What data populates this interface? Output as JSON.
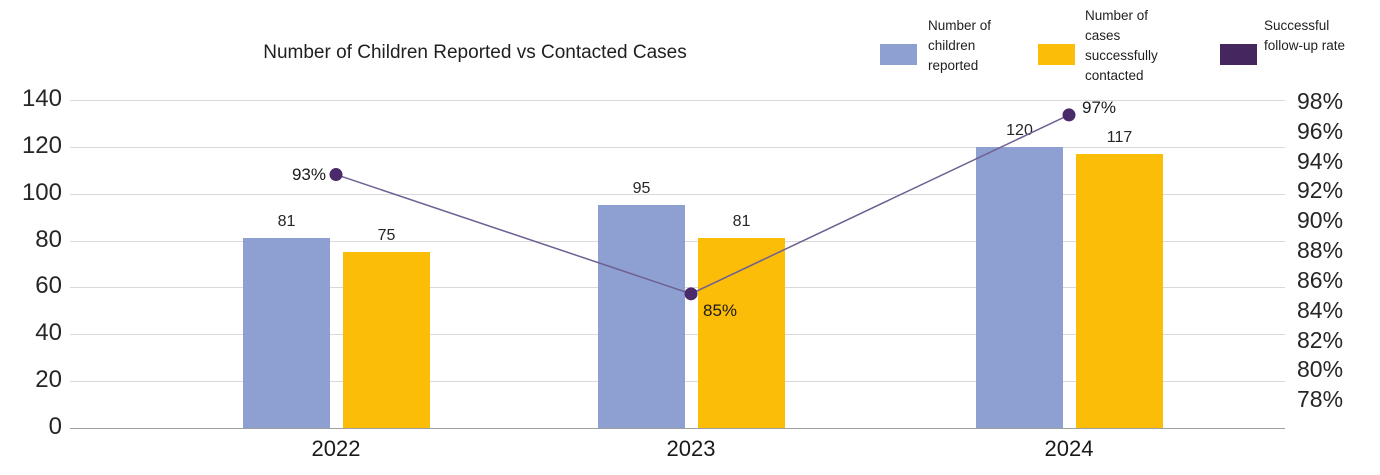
{
  "title": "Number of Children Reported vs Contacted Cases",
  "legend": {
    "position": "top-right",
    "items": [
      {
        "label": "Number of children reported",
        "color": "#8E9FD1"
      },
      {
        "label": "Number of cases successfully contacted",
        "color": "#FBBD08"
      },
      {
        "label": "Successful follow-up rate",
        "color": "#45265E"
      }
    ]
  },
  "chart_data": {
    "type": "combo-bar-line",
    "title": "Number of Children Reported vs Contacted Cases",
    "categories": [
      "2022",
      "2023",
      "2024"
    ],
    "series": [
      {
        "name": "Number of children reported",
        "type": "bar",
        "axis": "left",
        "color": "#8E9FD1",
        "values": [
          81,
          95,
          120
        ],
        "data_labels": [
          "81",
          "95",
          "120"
        ]
      },
      {
        "name": "Number of cases successfully contacted",
        "type": "bar",
        "axis": "left",
        "color": "#FBBD08",
        "values": [
          75,
          81,
          117
        ],
        "data_labels": [
          "75",
          "81",
          "117"
        ]
      },
      {
        "name": "Successful follow-up rate",
        "type": "line",
        "axis": "right",
        "point_color": "#4A2A68",
        "line_color": "#6F6092",
        "values": [
          93,
          85,
          97
        ],
        "data_labels": [
          "93%",
          "85%",
          "97%"
        ]
      }
    ],
    "left_axis": {
      "min": 0,
      "max": 140,
      "step": 20,
      "ticks": [
        "140",
        "120",
        "100",
        "80",
        "60",
        "40",
        "20",
        "0"
      ]
    },
    "right_axis": {
      "min": 76,
      "max": 98,
      "step": 2,
      "ticks": [
        "98%",
        "96%",
        "94%",
        "92%",
        "90%",
        "88%",
        "86%",
        "84%",
        "82%",
        "80%",
        "78%"
      ]
    },
    "gridlines": "horizontal",
    "legend_position": "top-right"
  }
}
